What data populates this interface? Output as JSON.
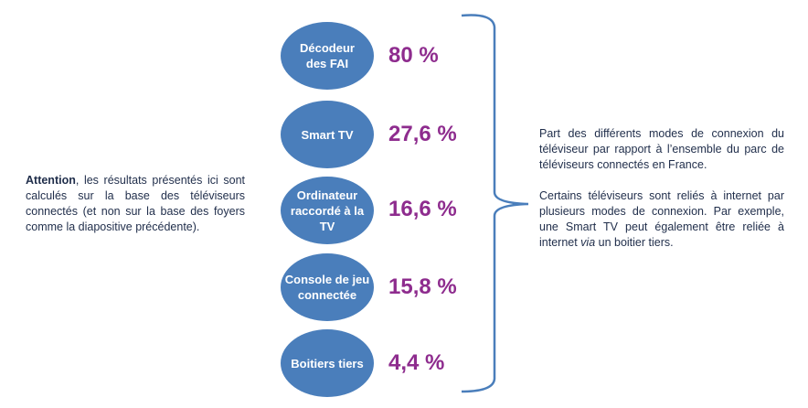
{
  "items": [
    {
      "label": "Décodeur des FAI",
      "value": "80 %"
    },
    {
      "label": "Smart TV",
      "value": "27,6 %"
    },
    {
      "label": "Ordinateur raccordé à la TV",
      "value": "16,6 %"
    },
    {
      "label": "Console de jeu connectée",
      "value": "15,8 %"
    },
    {
      "label": "Boitiers tiers",
      "value": "4,4 %"
    }
  ],
  "left_note": {
    "bold": "Attention",
    "text": ", les résultats présentés ici sont calculés sur la base des téléviseurs connectés (et non sur la base des foyers comme la diapositive précédente)."
  },
  "right_note": {
    "p1": "Part des différents modes de connexion du téléviseur par rapport à l’ensemble du parc de téléviseurs connectés en France.",
    "p2_a": "Certains téléviseurs sont reliés à internet par plusieurs modes de connexion. Par exemple, une Smart TV peut également être reliée à internet ",
    "p2_italic": "via",
    "p2_b": " un boitier tiers."
  },
  "colors": {
    "oval": "#4a7ebb",
    "value": "#8e2c8e",
    "text": "#1f2d4a"
  }
}
